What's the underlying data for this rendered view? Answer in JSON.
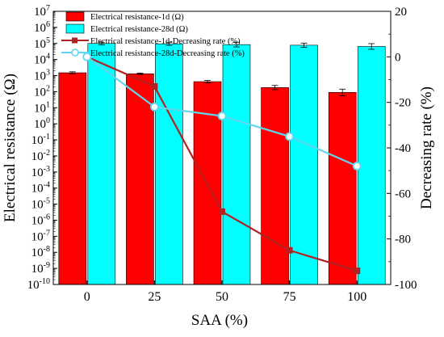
{
  "chart_data": {
    "type": "bar",
    "categories": [
      "0",
      "25",
      "50",
      "75",
      "100"
    ],
    "xlabel": "SAA (%)",
    "ylabel_left": "Electrical resistance (Ω)",
    "ylabel_right": "Decreasing rate (%)",
    "y_left_scale": "log",
    "y_left_range": [
      1e-10,
      10000000.0
    ],
    "y_left_ticks": [
      {
        "sup": "7",
        "v": 7
      },
      {
        "sup": "6",
        "v": 6
      },
      {
        "sup": "5",
        "v": 5
      },
      {
        "sup": "4",
        "v": 4
      },
      {
        "sup": "3",
        "v": 3
      },
      {
        "sup": "2",
        "v": 2
      },
      {
        "sup": "1",
        "v": 1
      },
      {
        "sup": "0",
        "v": 0
      },
      {
        "sup": "-1",
        "v": -1
      },
      {
        "sup": "-2",
        "v": -2
      },
      {
        "sup": "-3",
        "v": -3
      },
      {
        "sup": "-4",
        "v": -4
      },
      {
        "sup": "-5",
        "v": -5
      },
      {
        "sup": "-6",
        "v": -6
      },
      {
        "sup": "-7",
        "v": -7
      },
      {
        "sup": "-8",
        "v": -8
      },
      {
        "sup": "-9",
        "v": -9
      },
      {
        "sup": "-10",
        "v": -10
      }
    ],
    "y_right_range": [
      -100,
      20
    ],
    "y_right_ticks": [
      "20",
      "0",
      "-20",
      "-40",
      "-60",
      "-80",
      "-100"
    ],
    "grid": false,
    "legend_position": "top",
    "series": [
      {
        "name": "Electrical resistance-1d (Ω)",
        "kind": "bar",
        "axis": "left",
        "color": "#ff0000",
        "values": [
          1500,
          1300,
          420,
          180,
          90
        ],
        "errors": [
          1.15,
          1.1,
          1.2,
          1.35,
          1.6
        ]
      },
      {
        "name": "Electrical resistance-28d (Ω)",
        "kind": "bar",
        "axis": "left",
        "color": "#00ffff",
        "values": [
          100000,
          95000,
          85000,
          78000,
          65000
        ],
        "errors": [
          1.2,
          1.25,
          1.4,
          1.35,
          1.5
        ]
      },
      {
        "name": "Electrical resistance-1d-Decreasing rate (%)",
        "kind": "line",
        "axis": "right",
        "color": "#b22222",
        "marker": "square",
        "values": [
          0,
          -13,
          -68,
          -85,
          -94
        ]
      },
      {
        "name": "Electrical resistance-28d-Decreasing rate (%)",
        "kind": "line",
        "axis": "right",
        "color": "#5fd7ee",
        "marker": "circle",
        "values": [
          0,
          -22,
          -26,
          -35,
          -48
        ]
      }
    ]
  }
}
